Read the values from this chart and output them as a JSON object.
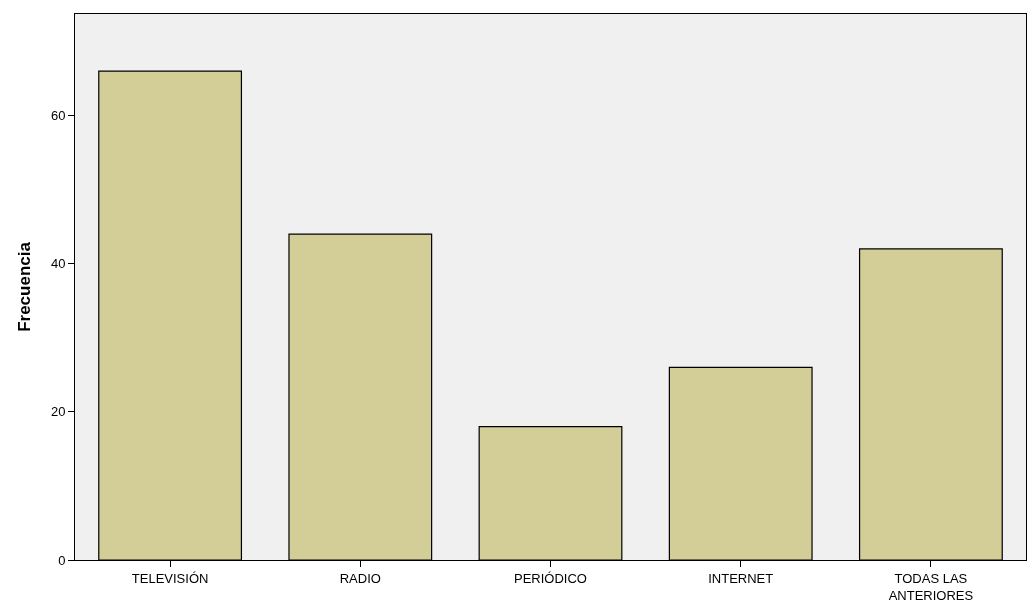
{
  "chart_data": {
    "type": "bar",
    "ylabel": "Frecuencia",
    "categories": [
      "TELEVISIÓN",
      "RADIO",
      "PERIÓDICO",
      "INTERNET",
      "TODAS LAS ANTERIORES"
    ],
    "values": [
      66,
      44,
      18,
      26,
      42
    ],
    "color": "#d3ce97",
    "ylim": [
      0,
      73.7
    ],
    "yticks": [
      0,
      20,
      40,
      60
    ]
  }
}
